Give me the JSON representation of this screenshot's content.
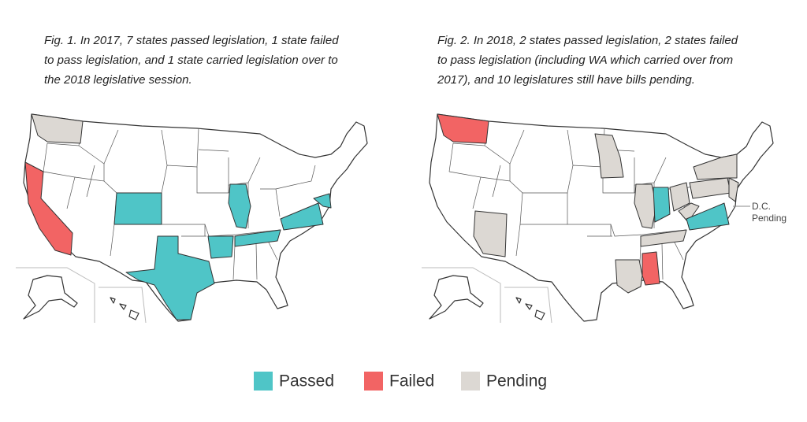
{
  "figures": [
    {
      "caption": [
        "Fig. 1. In 2017, 7 states passed legislation, 1 state failed",
        "to pass legislation, and 1 state carried legislation over to",
        "the 2018 legislative session."
      ]
    },
    {
      "caption": [
        "Fig. 2. In 2018, 2 states passed legislation, 2 states failed",
        "to pass legislation (including WA which carried over from",
        "2017), and 10 legislatures still have bills pending."
      ],
      "annotation": [
        "D.C.",
        "Pending"
      ]
    }
  ],
  "legend": [
    {
      "label": "Passed",
      "color": "#4fc5c7"
    },
    {
      "label": "Failed",
      "color": "#f26464"
    },
    {
      "label": "Pending",
      "color": "#dcd8d3"
    }
  ]
}
